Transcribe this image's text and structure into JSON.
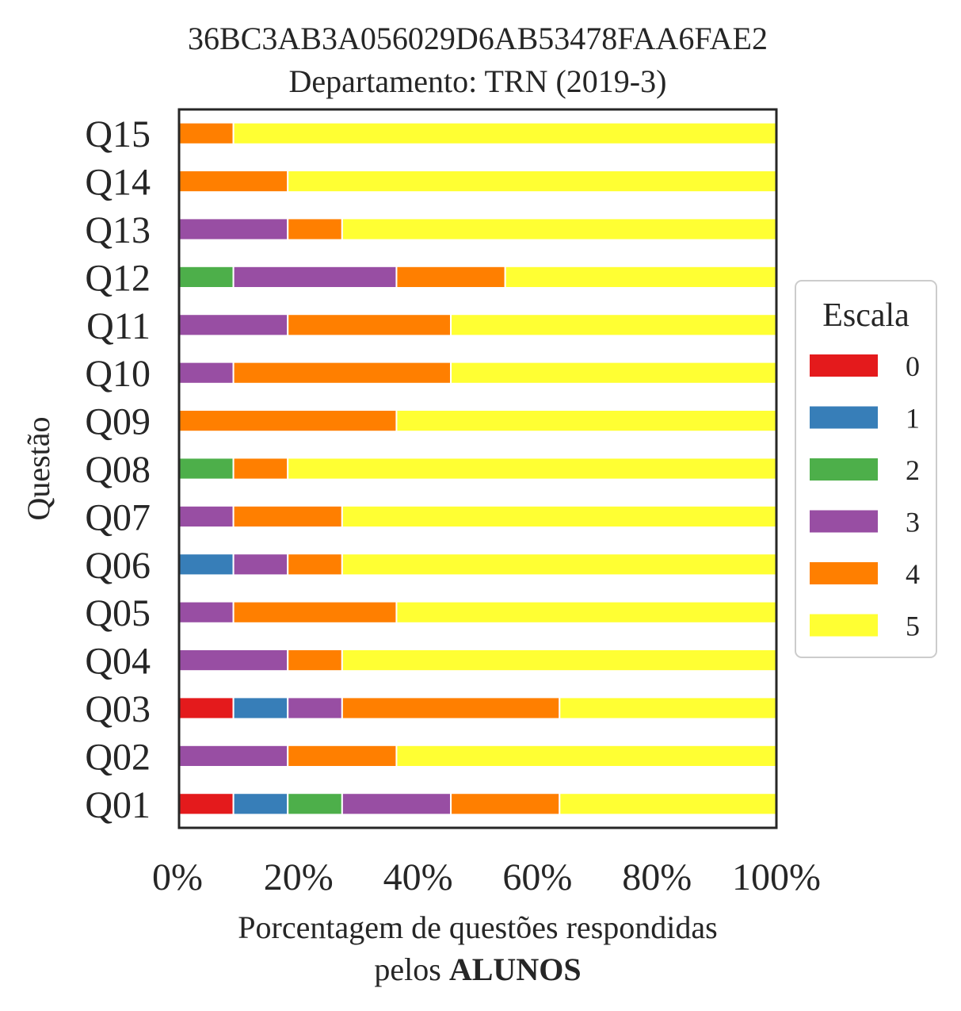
{
  "chart_data": {
    "type": "bar",
    "orientation": "horizontal",
    "stacked": true,
    "title": "36BC3AB3A056029D6AB53478FAA6FAE2",
    "subtitle": "Departamento: TRN (2019-3)",
    "xlabel_line1": "Porcentagem de questões respondidas",
    "xlabel_line2_prefix": "pelos ",
    "xlabel_line2_bold": "ALUNOS",
    "ylabel": "Questão",
    "xlim": [
      0,
      100
    ],
    "xticks": [
      "0%",
      "20%",
      "40%",
      "60%",
      "80%",
      "100%"
    ],
    "xtick_values": [
      0,
      20,
      40,
      60,
      80,
      100
    ],
    "grid": false,
    "categories": [
      "Q01",
      "Q02",
      "Q03",
      "Q04",
      "Q05",
      "Q06",
      "Q07",
      "Q08",
      "Q09",
      "Q10",
      "Q11",
      "Q12",
      "Q13",
      "Q14",
      "Q15"
    ],
    "legend": {
      "title": "Escala",
      "placement": "right"
    },
    "series": [
      {
        "name": "0",
        "color": "#e41a1c",
        "values": [
          9.1,
          0,
          9.1,
          0,
          0,
          0,
          0,
          0,
          0,
          0,
          0,
          0,
          0,
          0,
          0
        ]
      },
      {
        "name": "1",
        "color": "#377eb8",
        "values": [
          9.1,
          0,
          9.1,
          0,
          0,
          9.1,
          0,
          0,
          0,
          0,
          0,
          0,
          0,
          0,
          0
        ]
      },
      {
        "name": "2",
        "color": "#4daf4a",
        "values": [
          9.1,
          0,
          0,
          0,
          0,
          0,
          0,
          9.1,
          0,
          0,
          0,
          9.1,
          0,
          0,
          0
        ]
      },
      {
        "name": "3",
        "color": "#984ea3",
        "values": [
          18.2,
          18.2,
          9.1,
          18.2,
          9.1,
          9.1,
          9.1,
          0,
          0,
          9.1,
          18.2,
          27.3,
          18.2,
          0,
          0
        ]
      },
      {
        "name": "4",
        "color": "#ff7f00",
        "values": [
          18.2,
          18.2,
          36.4,
          9.1,
          27.3,
          9.1,
          18.2,
          9.1,
          36.4,
          36.4,
          27.3,
          18.2,
          9.1,
          18.2,
          9.1
        ]
      },
      {
        "name": "5",
        "color": "#ffff33",
        "values": [
          36.4,
          63.6,
          36.4,
          72.7,
          63.6,
          72.7,
          72.7,
          81.8,
          63.6,
          54.5,
          54.5,
          45.5,
          72.7,
          81.8,
          90.9
        ]
      }
    ]
  }
}
